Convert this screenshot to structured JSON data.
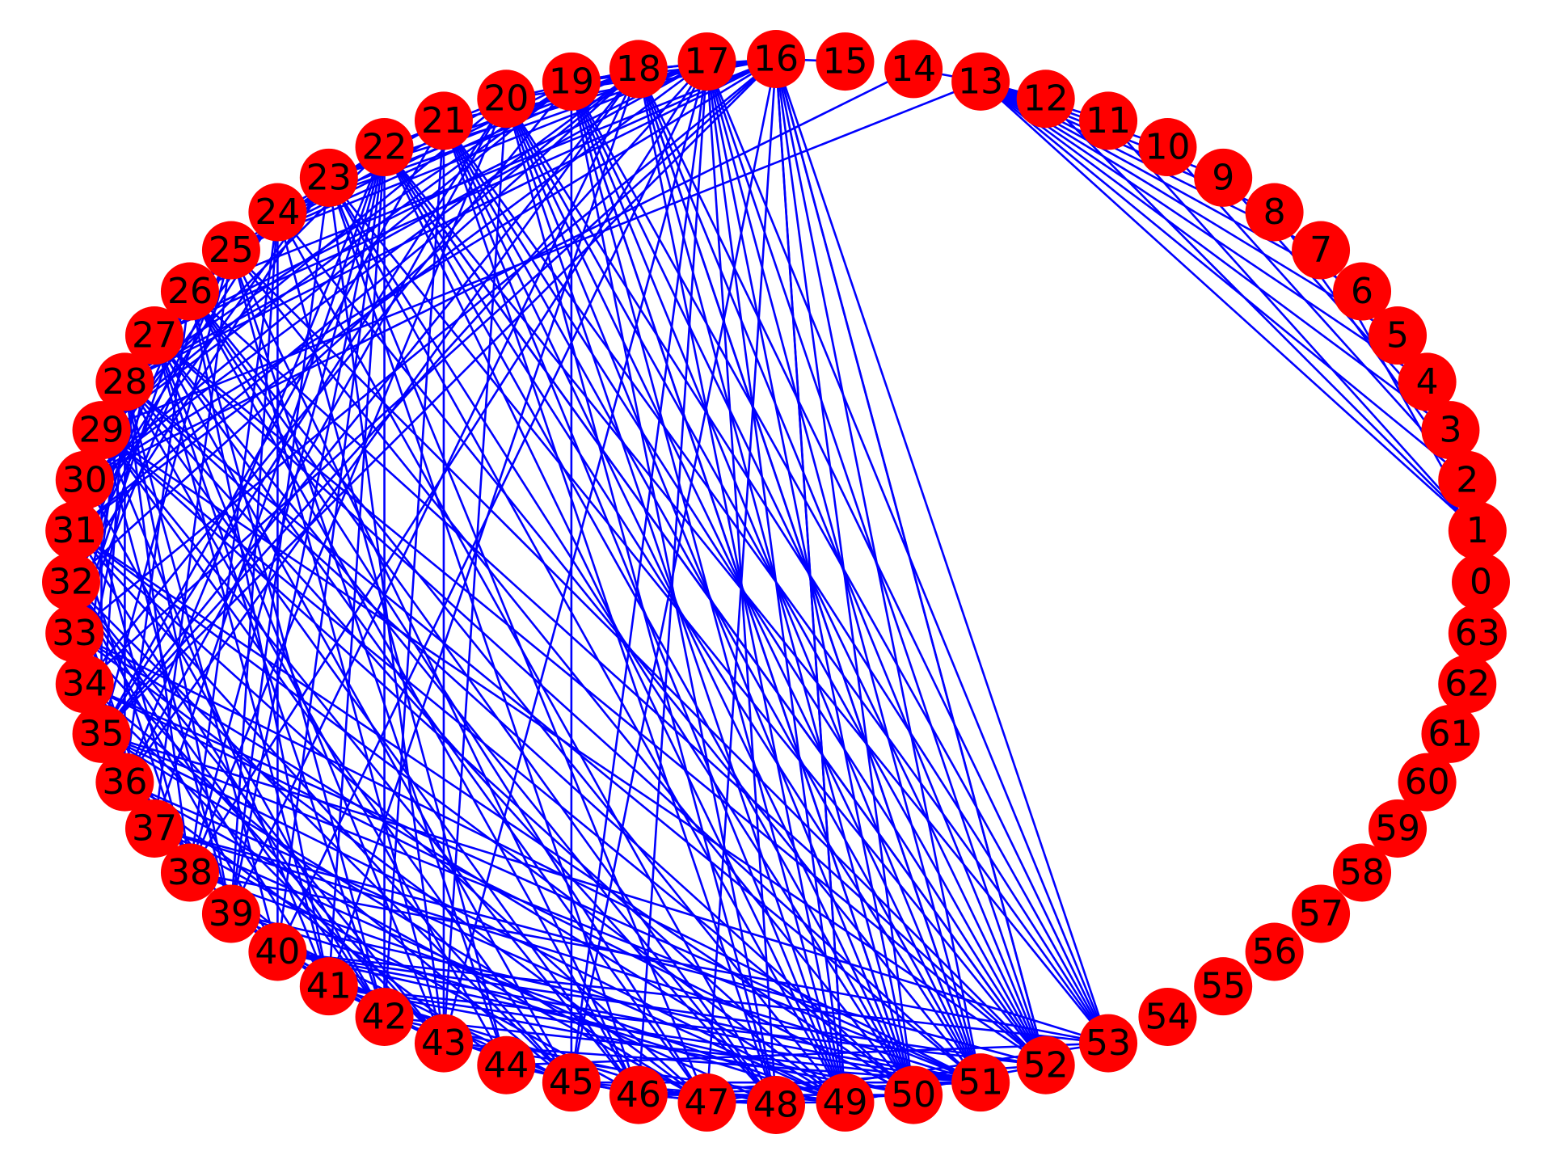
{
  "graph": {
    "node_color": "#ff0000",
    "edge_color": "#0000ff",
    "label_color": "#000000",
    "node_count": 64,
    "layout": "circular",
    "nodes": [
      "0",
      "1",
      "2",
      "3",
      "4",
      "5",
      "6",
      "7",
      "8",
      "9",
      "10",
      "11",
      "12",
      "13",
      "14",
      "15",
      "16",
      "17",
      "18",
      "19",
      "20",
      "21",
      "22",
      "23",
      "24",
      "25",
      "26",
      "27",
      "28",
      "29",
      "30",
      "31",
      "32",
      "33",
      "34",
      "35",
      "36",
      "37",
      "38",
      "39",
      "40",
      "41",
      "42",
      "43",
      "44",
      "45",
      "46",
      "47",
      "48",
      "49",
      "50",
      "51",
      "52",
      "53",
      "54",
      "55",
      "56",
      "57",
      "58",
      "59",
      "60",
      "61",
      "62",
      "63"
    ],
    "edges": [
      [
        13,
        12
      ],
      [
        13,
        11
      ],
      [
        13,
        10
      ],
      [
        13,
        9
      ],
      [
        13,
        8
      ],
      [
        13,
        7
      ],
      [
        13,
        6
      ],
      [
        13,
        5
      ],
      [
        13,
        4
      ],
      [
        13,
        3
      ],
      [
        13,
        2
      ],
      [
        13,
        1
      ],
      [
        12,
        1
      ],
      [
        11,
        1
      ],
      [
        10,
        2
      ],
      [
        9,
        3
      ],
      [
        8,
        2
      ],
      [
        7,
        1
      ],
      [
        13,
        29
      ],
      [
        14,
        30
      ],
      [
        15,
        16
      ],
      [
        14,
        13
      ],
      [
        53,
        35
      ],
      [
        53,
        38
      ],
      [
        53,
        40
      ],
      [
        53,
        44
      ],
      [
        53,
        47
      ],
      [
        62,
        59
      ],
      [
        61,
        60
      ]
    ],
    "dense_cluster": {
      "range": [
        16,
        52
      ],
      "extra_hub_nodes": [
        16,
        17,
        18,
        19,
        20,
        21,
        22
      ],
      "extra_sink_nodes": [
        49,
        50,
        51,
        52,
        53
      ]
    }
  }
}
